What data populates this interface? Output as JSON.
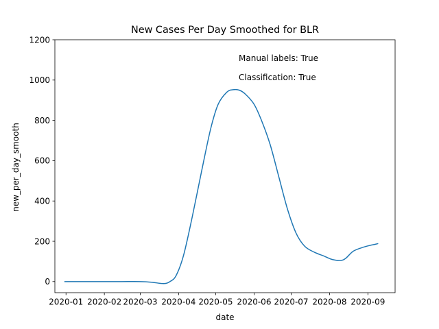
{
  "colors": {
    "series": "#1f77b4",
    "axes": "#000000",
    "background": "#ffffff"
  },
  "chart_data": {
    "type": "line",
    "title": "New Cases Per Day Smoothed for BLR",
    "xlabel": "date",
    "ylabel": "new_per_day_smooth",
    "x_ticks": [
      "2020-01",
      "2020-02",
      "2020-03",
      "2020-04",
      "2020-05",
      "2020-06",
      "2020-07",
      "2020-08",
      "2020-09"
    ],
    "y_ticks": [
      0,
      200,
      400,
      600,
      800,
      1000,
      1200
    ],
    "ylim": [
      -55,
      1200
    ],
    "xlim": [
      "2019-12-23",
      "2020-09-23"
    ],
    "grid": false,
    "annotations": [
      "Manual labels: True",
      "Classification: True"
    ],
    "series": [
      {
        "x": [
          "2019-12-31",
          "2020-01-15",
          "2020-02-01",
          "2020-02-15",
          "2020-03-01",
          "2020-03-10",
          "2020-03-20",
          "2020-03-25",
          "2020-03-30",
          "2020-04-05",
          "2020-04-12",
          "2020-04-20",
          "2020-04-27",
          "2020-05-03",
          "2020-05-10",
          "2020-05-15",
          "2020-05-20",
          "2020-05-25",
          "2020-06-01",
          "2020-06-07",
          "2020-06-14",
          "2020-06-21",
          "2020-06-28",
          "2020-07-05",
          "2020-07-12",
          "2020-07-20",
          "2020-07-27",
          "2020-08-03",
          "2020-08-10",
          "2020-08-14",
          "2020-08-20",
          "2020-08-27",
          "2020-09-03",
          "2020-09-09"
        ],
        "y": [
          0,
          0,
          0,
          0,
          0,
          -3,
          -10,
          0,
          30,
          130,
          320,
          560,
          760,
          880,
          940,
          952,
          950,
          930,
          880,
          800,
          680,
          520,
          360,
          240,
          175,
          145,
          128,
          110,
          105,
          115,
          150,
          168,
          180,
          188
        ]
      }
    ]
  }
}
